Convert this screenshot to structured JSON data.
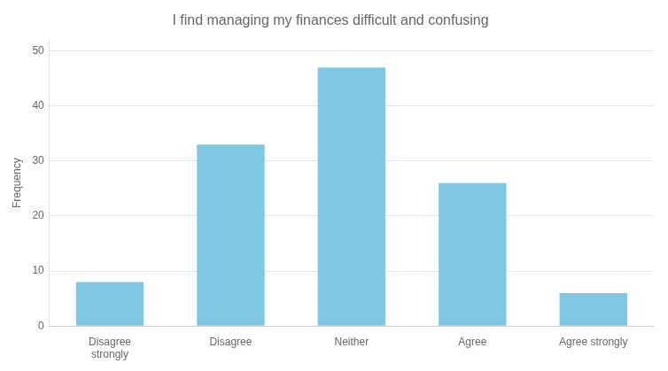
{
  "chart_data": {
    "type": "bar",
    "title": "I find managing my finances difficult and confusing",
    "categories": [
      "Disagree\nstrongly",
      "Disagree",
      "Neither",
      "Agree",
      "Agree strongly"
    ],
    "values": [
      8,
      33,
      47,
      26,
      6
    ],
    "color": "#7EC8E3",
    "ylabel": "Frequency",
    "ylim": [
      0,
      52
    ],
    "yticks": [
      0,
      10,
      20,
      30,
      40,
      50
    ],
    "grid": true
  }
}
